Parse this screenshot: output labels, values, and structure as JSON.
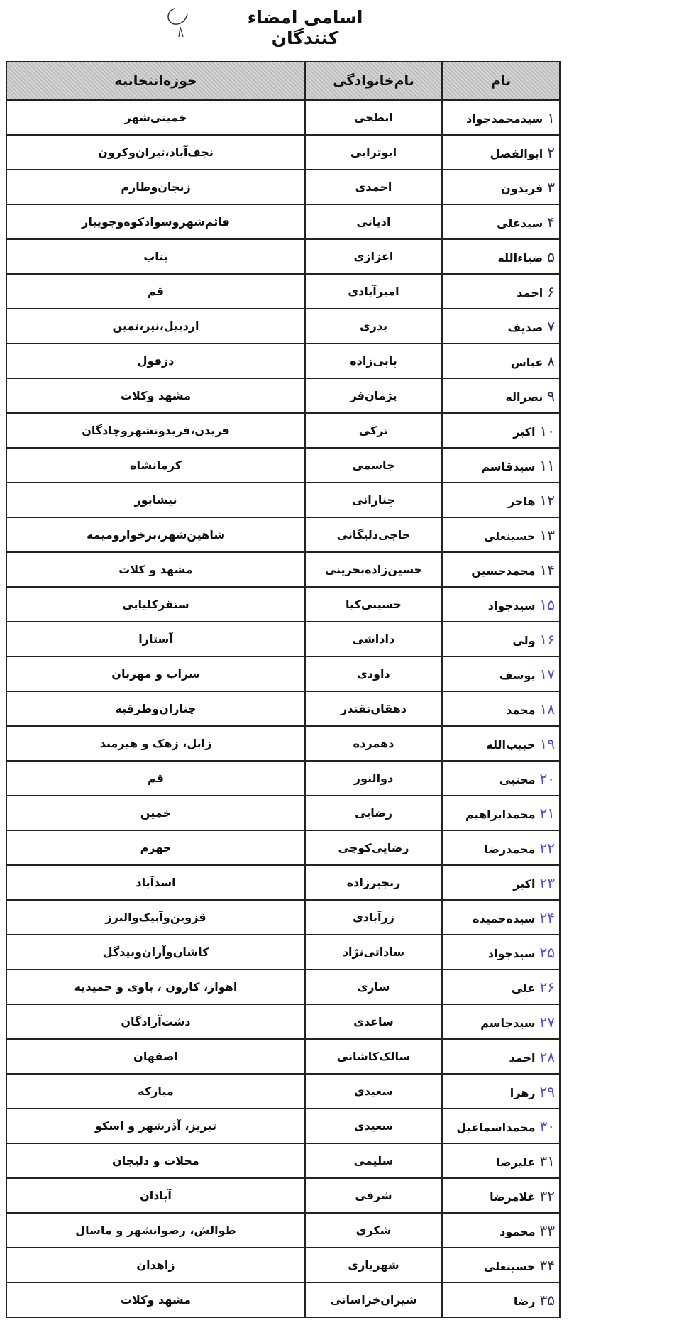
{
  "title": "اسامی امضاء کنندگان",
  "headers": {
    "name": "نام",
    "family": "نام‌خانوادگی",
    "district": "حوزه‌انتخابیه"
  },
  "ink_colors": {
    "dark": "#2a2a55",
    "blue": "#4a4fd0"
  },
  "rows": [
    {
      "num": "۱",
      "name": "سیدمحمدجواد",
      "family": "ابطحی",
      "district": "خمینی‌شهر"
    },
    {
      "num": "۲",
      "name": "ابوالفضل",
      "family": "ابوترابی",
      "district": "نجف‌آباد،تیران‌وکرون"
    },
    {
      "num": "۳",
      "name": "فریدون",
      "family": "احمدی",
      "district": "زنجان‌وطارم"
    },
    {
      "num": "۴",
      "name": "سیدعلی",
      "family": "ادیانی",
      "district": "قائم‌شهروسوادکوه‌وجویبار"
    },
    {
      "num": "۵",
      "name": "ضیاءالله",
      "family": "اعزازی",
      "district": "بناب"
    },
    {
      "num": "۶",
      "name": "احمد",
      "family": "امیرآبادی",
      "district": "قم"
    },
    {
      "num": "۷",
      "name": "صدیف",
      "family": "بدری",
      "district": "اردبیل،نیر،نمین"
    },
    {
      "num": "۸",
      "name": "عباس",
      "family": "پاپی‌زاده",
      "district": "دزفول"
    },
    {
      "num": "۹",
      "name": "نصراله",
      "family": "پژمان‌فر",
      "district": "مشهد وکلات"
    },
    {
      "num": "۱۰",
      "name": "اکبر",
      "family": "ترکی",
      "district": "فریدن،فریدونشهروچادگان"
    },
    {
      "num": "۱۱",
      "name": "سیدقاسم",
      "family": "جاسمی",
      "district": "کرمانشاه"
    },
    {
      "num": "۱۲",
      "name": "هاجر",
      "family": "چنارانی",
      "district": "نیشابور"
    },
    {
      "num": "۱۳",
      "name": "حسینعلی",
      "family": "حاجی‌دلیگانی",
      "district": "شاهین‌شهر،برخواروميمه"
    },
    {
      "num": "۱۴",
      "name": "محمدحسین",
      "family": "حسین‌زاده‌بحرینی",
      "district": "مشهد و کلات"
    },
    {
      "num": "۱۵",
      "name": "سیدجواد",
      "family": "حسینی‌کیا",
      "district": "سنقرکلیایی"
    },
    {
      "num": "۱۶",
      "name": "ولی",
      "family": "داداشی",
      "district": "آستارا"
    },
    {
      "num": "۱۷",
      "name": "یوسف",
      "family": "داودی",
      "district": "سراب و مهربان"
    },
    {
      "num": "۱۸",
      "name": "محمد",
      "family": "دهقان‌نقندر",
      "district": "چناران‌وطرقبه"
    },
    {
      "num": "۱۹",
      "name": "حبیب‌الله",
      "family": "دهمرده",
      "district": "زابل، زهک و هیرمند"
    },
    {
      "num": "۲۰",
      "name": "مجتبی",
      "family": "ذوالنور",
      "district": "قم"
    },
    {
      "num": "۲۱",
      "name": "محمدابراهیم",
      "family": "رضایی",
      "district": "خمین"
    },
    {
      "num": "۲۲",
      "name": "محمدرضا",
      "family": "رضایی‌کوچی",
      "district": "جهرم"
    },
    {
      "num": "۲۳",
      "name": "اکبر",
      "family": "رنجبرزاده",
      "district": "اسدآباد"
    },
    {
      "num": "۲۴",
      "name": "سیده‌حمیده",
      "family": "زرآبادی",
      "district": "قزوین‌وآبیک‌والبرز"
    },
    {
      "num": "۲۵",
      "name": "سیدجواد",
      "family": "ساداتی‌نژاد",
      "district": "کاشان‌وآران‌وبیدگل"
    },
    {
      "num": "۲۶",
      "name": "علی",
      "family": "ساری",
      "district": "اهواز، کارون ، باوی و حمیدیه"
    },
    {
      "num": "۲۷",
      "name": "سیدجاسم",
      "family": "ساعدی",
      "district": "دشت‌آزادگان"
    },
    {
      "num": "۲۸",
      "name": "احمد",
      "family": "سالک‌کاشانی",
      "district": "اصفهان"
    },
    {
      "num": "۲۹",
      "name": "زهرا",
      "family": "سعیدی",
      "district": "مبارکه"
    },
    {
      "num": "۳۰",
      "name": "محمداسماعیل",
      "family": "سعیدی",
      "district": "تبریز، آذرشهر و اسکو"
    },
    {
      "num": "۳۱",
      "name": "علیرضا",
      "family": "سلیمی",
      "district": "محلات و دلیجان"
    },
    {
      "num": "۳۲",
      "name": "غلامرضا",
      "family": "شرفی",
      "district": "آبادان"
    },
    {
      "num": "۳۳",
      "name": "محمود",
      "family": "شکری",
      "district": "طوالش، رضوانشهر و ماسال"
    },
    {
      "num": "۳۴",
      "name": "حسینعلی",
      "family": "شهریاری",
      "district": "زاهدان"
    },
    {
      "num": "۳۵",
      "name": "رضا",
      "family": "شیران‌خراسانی",
      "district": "مشهد وکلات"
    }
  ]
}
